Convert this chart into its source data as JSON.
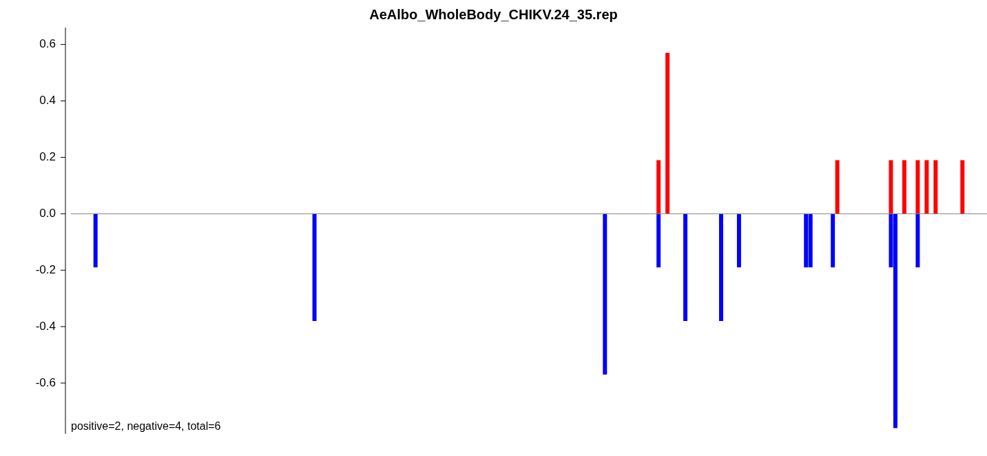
{
  "chart_data": {
    "type": "bar",
    "title": "AeAlbo_WholeBody_CHIKV.24_35.rep",
    "categories": [
      null,
      null,
      null,
      null,
      null,
      null,
      null,
      null,
      null,
      null,
      null,
      null,
      null,
      null,
      null,
      null,
      null,
      null,
      null,
      null,
      null,
      null,
      null,
      null,
      null,
      null,
      null,
      null,
      null,
      null,
      null,
      null,
      null,
      null,
      null,
      null,
      null,
      null,
      null,
      null,
      null,
      null,
      null,
      null,
      null,
      null,
      null,
      null,
      null,
      null,
      null,
      null,
      null,
      null,
      null,
      null,
      null,
      null,
      null,
      null,
      null,
      null,
      null,
      null,
      null,
      null,
      null,
      null,
      null,
      null,
      null,
      null,
      null,
      null,
      null,
      null,
      null,
      null,
      null,
      null,
      null,
      null,
      null,
      null,
      null,
      null,
      null,
      null,
      null,
      null,
      null,
      null,
      null,
      null,
      null,
      null,
      null,
      null,
      null,
      null,
      null,
      null,
      null,
      null,
      null,
      null,
      null,
      null,
      null,
      null,
      null,
      null,
      null,
      null,
      null,
      null,
      null,
      null,
      null,
      null,
      null,
      null,
      null,
      null,
      null,
      null,
      null,
      null,
      null,
      null,
      null,
      null,
      null,
      null,
      null,
      null,
      null,
      null,
      null,
      null,
      null,
      null,
      null,
      null,
      null,
      null,
      null,
      null,
      null,
      null,
      null,
      null,
      null,
      null,
      null,
      null,
      null,
      null,
      null,
      null,
      null,
      null,
      null,
      null,
      null,
      null,
      null,
      null,
      null,
      null,
      null,
      null,
      null,
      null,
      null,
      null,
      null,
      null,
      null,
      null,
      null,
      null,
      null,
      null,
      null,
      null,
      null,
      null,
      null,
      null,
      null,
      null,
      null,
      null,
      null,
      null,
      null,
      null,
      null,
      null,
      null,
      null,
      null,
      null,
      null
    ],
    "series": [
      {
        "color": "#ff0000",
        "values": [
          null,
          null,
          null,
          null,
          null,
          null,
          null,
          null,
          null,
          null,
          null,
          null,
          null,
          null,
          null,
          null,
          null,
          null,
          null,
          null,
          null,
          null,
          null,
          null,
          null,
          null,
          null,
          null,
          null,
          null,
          null,
          null,
          null,
          null,
          null,
          null,
          null,
          null,
          null,
          null,
          null,
          null,
          null,
          null,
          null,
          null,
          null,
          null,
          null,
          null,
          null,
          null,
          null,
          null,
          null,
          null,
          null,
          null,
          null,
          null,
          null,
          null,
          null,
          null,
          null,
          null,
          null,
          null,
          null,
          null,
          null,
          null,
          null,
          null,
          null,
          null,
          null,
          null,
          null,
          null,
          null,
          null,
          null,
          null,
          null,
          null,
          null,
          null,
          null,
          null,
          null,
          null,
          null,
          null,
          null,
          null,
          null,
          null,
          null,
          null,
          null,
          null,
          null,
          null,
          null,
          null,
          null,
          null,
          null,
          null,
          null,
          null,
          null,
          null,
          null,
          null,
          null,
          null,
          null,
          null,
          null,
          null,
          null,
          null,
          null,
          null,
          null,
          null,
          null,
          null,
          null,
          0.19,
          null,
          0.57,
          null,
          null,
          null,
          null,
          null,
          null,
          null,
          null,
          null,
          null,
          null,
          null,
          null,
          null,
          null,
          null,
          null,
          null,
          null,
          null,
          null,
          null,
          null,
          null,
          null,
          null,
          null,
          null,
          null,
          null,
          null,
          null,
          null,
          null,
          null,
          null,
          null,
          0.19,
          null,
          null,
          null,
          null,
          null,
          null,
          null,
          null,
          null,
          null,
          null,
          0.19,
          null,
          null,
          0.19,
          null,
          null,
          0.19,
          null,
          0.19,
          null,
          0.19,
          null,
          null,
          null,
          null,
          null,
          0.19,
          null,
          null,
          null,
          null,
          null
        ]
      },
      {
        "color": "#0000ff",
        "values": [
          null,
          null,
          null,
          null,
          null,
          -0.19,
          null,
          null,
          null,
          null,
          null,
          null,
          null,
          null,
          null,
          null,
          null,
          null,
          null,
          null,
          null,
          null,
          null,
          null,
          null,
          null,
          null,
          null,
          null,
          null,
          null,
          null,
          null,
          null,
          null,
          null,
          null,
          null,
          null,
          null,
          null,
          null,
          null,
          null,
          null,
          null,
          null,
          null,
          null,
          null,
          null,
          null,
          null,
          null,
          -0.38,
          null,
          null,
          null,
          null,
          null,
          null,
          null,
          null,
          null,
          null,
          null,
          null,
          null,
          null,
          null,
          null,
          null,
          null,
          null,
          null,
          null,
          null,
          null,
          null,
          null,
          null,
          null,
          null,
          null,
          null,
          null,
          null,
          null,
          null,
          null,
          null,
          null,
          null,
          null,
          null,
          null,
          null,
          null,
          null,
          null,
          null,
          null,
          null,
          null,
          null,
          null,
          null,
          null,
          null,
          null,
          null,
          null,
          null,
          null,
          null,
          null,
          null,
          null,
          null,
          -0.57,
          null,
          null,
          null,
          null,
          null,
          null,
          null,
          null,
          null,
          null,
          null,
          -0.19,
          null,
          null,
          null,
          null,
          null,
          -0.38,
          null,
          null,
          null,
          null,
          null,
          null,
          null,
          -0.38,
          null,
          null,
          null,
          -0.19,
          null,
          null,
          null,
          null,
          null,
          null,
          null,
          null,
          null,
          null,
          null,
          null,
          null,
          null,
          -0.19,
          -0.19,
          null,
          null,
          null,
          null,
          -0.19,
          null,
          null,
          null,
          null,
          null,
          null,
          null,
          null,
          null,
          null,
          null,
          null,
          -0.19,
          -0.76,
          null,
          null,
          null,
          null,
          -0.19,
          null,
          null,
          null,
          null,
          null,
          null,
          null,
          null,
          null,
          null,
          null,
          null,
          null,
          null,
          null
        ]
      }
    ],
    "stacked": true,
    "ylim": [
      -0.78,
      0.66
    ],
    "yticks": [
      {
        "value": -0.6,
        "label": "-0.6"
      },
      {
        "value": -0.4,
        "label": "-0.4"
      },
      {
        "value": -0.2,
        "label": "-0.2"
      },
      {
        "value": 0,
        "label": "0.0"
      },
      {
        "value": 0.2,
        "label": "0.2"
      },
      {
        "value": 0.4,
        "label": "0.4"
      },
      {
        "value": 0.6,
        "label": "0.6"
      }
    ],
    "ref_lines": [
      {
        "axis": "y",
        "value": 0,
        "color": "#808080"
      }
    ],
    "annotations": [
      "positive=2, negative=4, total=6"
    ],
    "grid": false,
    "legend": false
  }
}
